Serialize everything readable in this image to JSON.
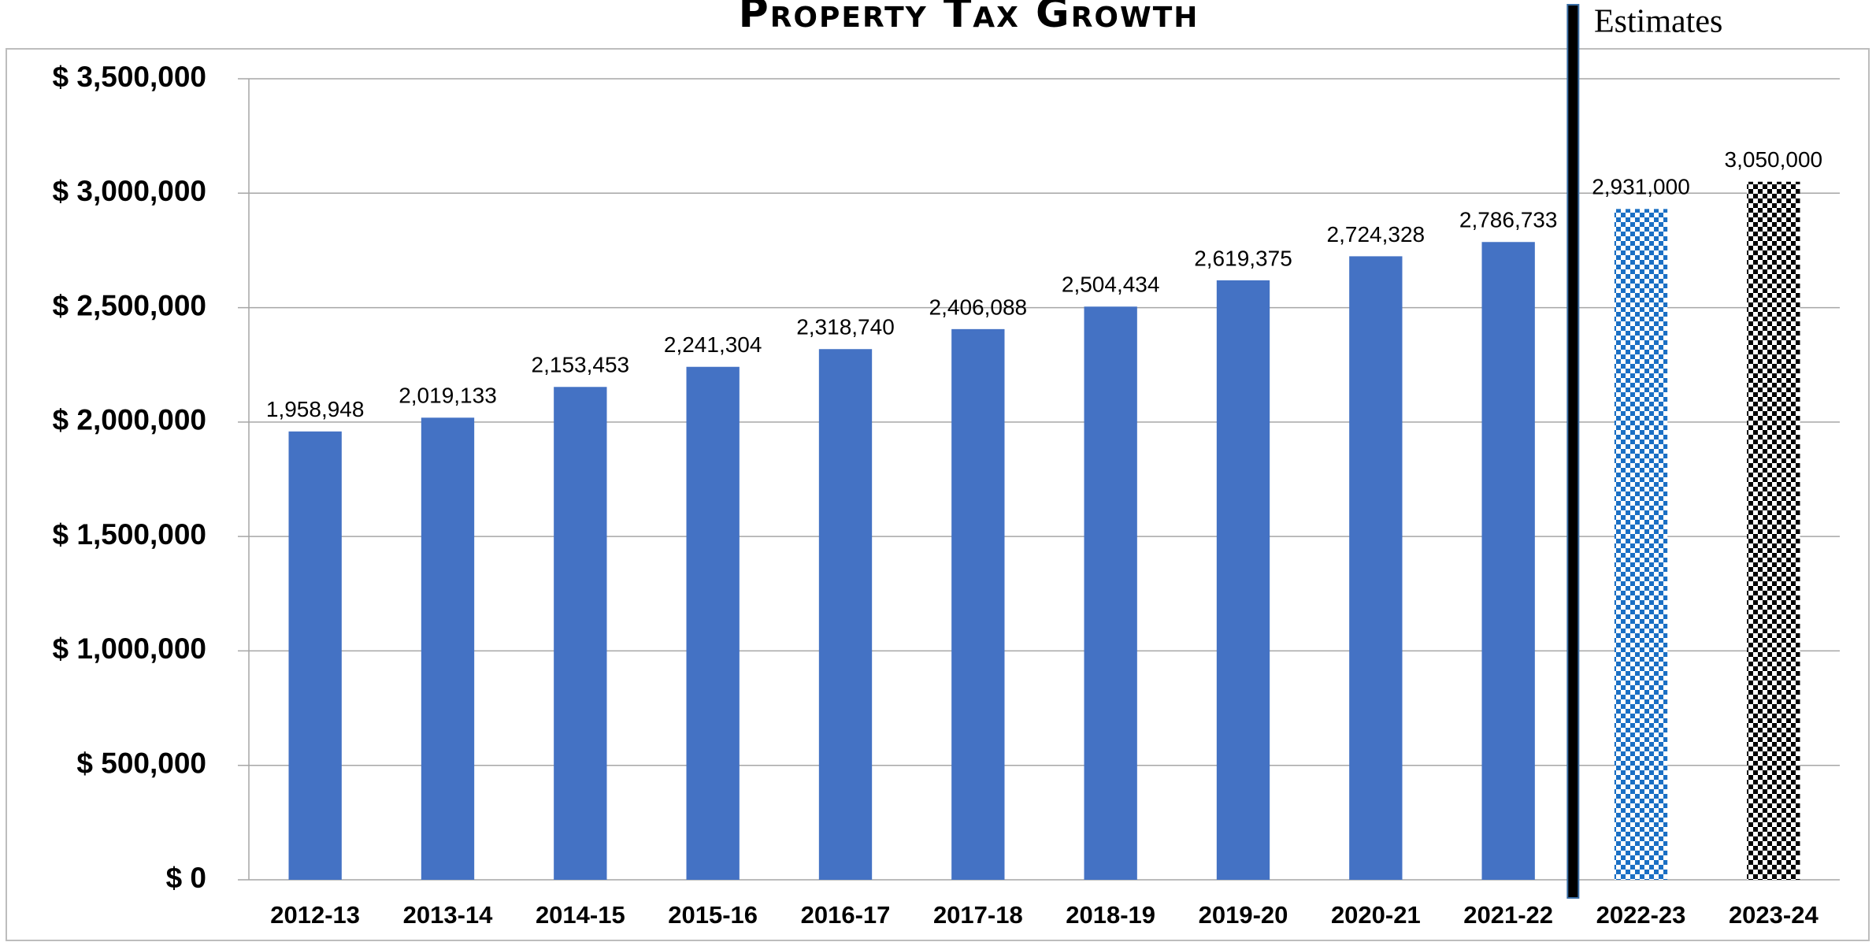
{
  "chart_data": {
    "type": "bar",
    "title": "Property Tax Growth",
    "annotation": "Estimates",
    "categories": [
      "2012-13",
      "2013-14",
      "2014-15",
      "2015-16",
      "2016-17",
      "2017-18",
      "2018-19",
      "2019-20",
      "2020-21",
      "2021-22",
      "2022-23",
      "2023-24"
    ],
    "values": [
      1958948,
      2019133,
      2153453,
      2241304,
      2318740,
      2406088,
      2504434,
      2619375,
      2724328,
      2786733,
      2931000,
      3050000
    ],
    "value_labels": [
      "1,958,948",
      "2,019,133",
      "2,153,453",
      "2,241,304",
      "2,318,740",
      "2,406,088",
      "2,504,434",
      "2,619,375",
      "2,724,328",
      "2,786,733",
      "2,931,000",
      "3,050,000"
    ],
    "colors": [
      "#4472c4",
      "#4472c4",
      "#4472c4",
      "#4472c4",
      "#4472c4",
      "#4472c4",
      "#4472c4",
      "#4472c4",
      "#4472c4",
      "#4472c4",
      "#1a6fc4",
      "#000000"
    ],
    "patterns": [
      "solid",
      "solid",
      "solid",
      "solid",
      "solid",
      "solid",
      "solid",
      "solid",
      "solid",
      "solid",
      "checker",
      "checker"
    ],
    "ylim": [
      0,
      3500000
    ],
    "yticks": [
      {
        "value": 0,
        "label": "$ 0"
      },
      {
        "value": 500000,
        "label": "$ 500,000"
      },
      {
        "value": 1000000,
        "label": "$ 1,000,000"
      },
      {
        "value": 1500000,
        "label": "$ 1,500,000"
      },
      {
        "value": 2000000,
        "label": "$ 2,000,000"
      },
      {
        "value": 2500000,
        "label": "$ 2,500,000"
      },
      {
        "value": 3000000,
        "label": "$ 3,000,000"
      },
      {
        "value": 3500000,
        "label": "$ 3,500,000"
      }
    ],
    "grid": true
  }
}
